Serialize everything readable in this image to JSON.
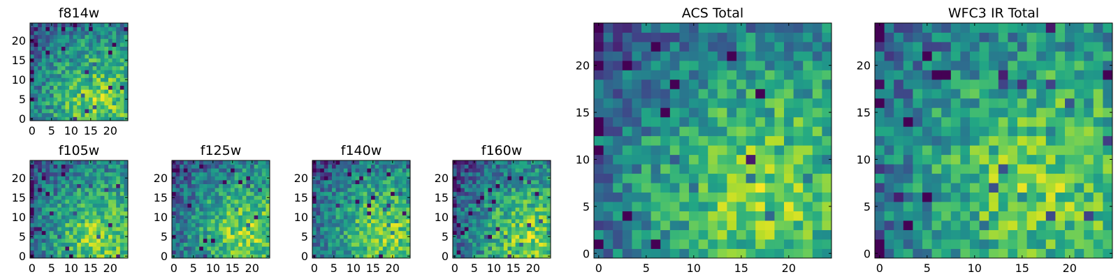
{
  "chart_data": [
    {
      "type": "heatmap",
      "title": "f814w",
      "colormap": "viridis",
      "grid_size": 25,
      "xticks": [
        0,
        5,
        10,
        15,
        20
      ],
      "yticks": [
        0,
        5,
        10,
        15,
        20
      ],
      "xlim": [
        0,
        25
      ],
      "ylim": [
        0,
        25
      ],
      "origin": "lower",
      "hotspot": [
        15,
        5
      ]
    },
    {
      "type": "heatmap",
      "title": "f105w",
      "colormap": "viridis",
      "grid_size": 25,
      "xticks": [
        0,
        5,
        10,
        15,
        20
      ],
      "yticks": [
        0,
        5,
        10,
        15,
        20
      ],
      "xlim": [
        0,
        25
      ],
      "ylim": [
        0,
        25
      ],
      "origin": "lower",
      "hotspot": [
        16,
        5
      ]
    },
    {
      "type": "heatmap",
      "title": "f125w",
      "colormap": "viridis",
      "grid_size": 25,
      "xticks": [
        0,
        5,
        10,
        15,
        20
      ],
      "yticks": [
        0,
        5,
        10,
        15,
        20
      ],
      "xlim": [
        0,
        25
      ],
      "ylim": [
        0,
        25
      ],
      "origin": "lower",
      "hotspot": [
        17,
        6
      ]
    },
    {
      "type": "heatmap",
      "title": "f140w",
      "colormap": "viridis",
      "grid_size": 25,
      "xticks": [
        0,
        5,
        10,
        15,
        20
      ],
      "yticks": [
        0,
        5,
        10,
        15,
        20
      ],
      "xlim": [
        0,
        25
      ],
      "ylim": [
        0,
        25
      ],
      "origin": "lower",
      "hotspot": [
        17,
        6
      ]
    },
    {
      "type": "heatmap",
      "title": "f160w",
      "colormap": "viridis",
      "grid_size": 25,
      "xticks": [
        0,
        5,
        10,
        15,
        20
      ],
      "yticks": [
        0,
        5,
        10,
        15,
        20
      ],
      "xlim": [
        0,
        25
      ],
      "ylim": [
        0,
        25
      ],
      "origin": "lower",
      "hotspot": [
        18,
        5
      ]
    },
    {
      "type": "heatmap",
      "title": "ACS Total",
      "colormap": "viridis",
      "grid_size": 25,
      "xticks": [
        0,
        5,
        10,
        15,
        20
      ],
      "yticks": [
        0,
        5,
        10,
        15,
        20
      ],
      "xlim": [
        0,
        25
      ],
      "ylim": [
        0,
        25
      ],
      "origin": "lower",
      "hotspot": [
        16,
        6
      ]
    },
    {
      "type": "heatmap",
      "title": "WFC3 IR Total",
      "colormap": "viridis",
      "grid_size": 25,
      "xticks": [
        0,
        5,
        10,
        15,
        20
      ],
      "yticks": [
        0,
        5,
        10,
        15,
        20
      ],
      "xlim": [
        0,
        25
      ],
      "ylim": [
        0,
        25
      ],
      "origin": "lower",
      "hotspot": [
        15,
        8
      ]
    }
  ]
}
